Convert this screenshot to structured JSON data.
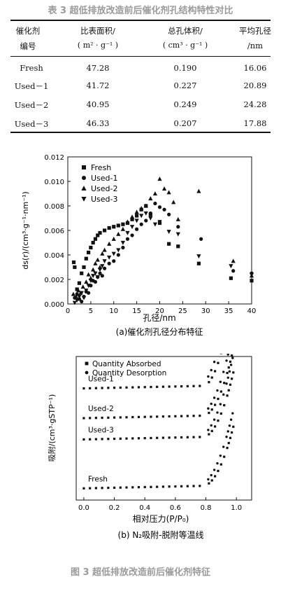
{
  "table": {
    "caption": "表 3 超低排放改造前后催化剂孔结构特性对比",
    "headers": [
      {
        "line1": "催化剂",
        "line2": "编号"
      },
      {
        "line1": "比表面积/",
        "line2": "( m² · g⁻¹ )"
      },
      {
        "line1": "总孔体积/",
        "line2": "( cm³ · g⁻¹ )"
      },
      {
        "line1": "平均孔径",
        "line2": "/nm"
      }
    ],
    "rows": [
      [
        "Fresh",
        "47.28",
        "0.190",
        "16.06"
      ],
      [
        "Used－1",
        "41.72",
        "0.227",
        "20.89"
      ],
      [
        "Used－2",
        "40.95",
        "0.249",
        "24.28"
      ],
      [
        "Used－3",
        "46.33",
        "0.207",
        "17.88"
      ]
    ]
  },
  "chart_data": [
    {
      "type": "scatter",
      "caption": "(a)催化剂孔径分布特征",
      "xlabel": "孔径/nm",
      "ylabel": "ds(r)/(cm³·g⁻¹·nm⁻¹)",
      "xlim": [
        0,
        40
      ],
      "ylim": [
        0,
        0.012
      ],
      "xticks": [
        "0",
        "5",
        "10",
        "15",
        "20",
        "25",
        "30",
        "35",
        "40"
      ],
      "yticks": [
        "0.000",
        "0.002",
        "0.004",
        "0.006",
        "0.008",
        "0.010",
        "0.012"
      ],
      "legend_position": "top-left",
      "series": [
        {
          "name": "Fresh",
          "marker": "square",
          "points": [
            [
              1.3,
              0.0034
            ],
            [
              1.5,
              0.003
            ],
            [
              2,
              0.0012
            ],
            [
              2.5,
              0.0017
            ],
            [
              3,
              0.0025
            ],
            [
              3.5,
              0.003
            ],
            [
              4,
              0.0037
            ],
            [
              4.5,
              0.0042
            ],
            [
              5,
              0.0046
            ],
            [
              5.5,
              0.005
            ],
            [
              6,
              0.0053
            ],
            [
              6.5,
              0.0056
            ],
            [
              7,
              0.0058
            ],
            [
              8,
              0.006
            ],
            [
              9,
              0.0062
            ],
            [
              10,
              0.0063
            ],
            [
              11,
              0.0064
            ],
            [
              12,
              0.0065
            ],
            [
              13,
              0.0066
            ],
            [
              14,
              0.0069
            ],
            [
              15,
              0.0072
            ],
            [
              16,
              0.0077
            ],
            [
              17,
              0.008
            ],
            [
              18,
              0.0073
            ],
            [
              20,
              0.0066
            ],
            [
              22,
              0.0049
            ],
            [
              24,
              0.0047
            ],
            [
              28.5,
              0.0033
            ],
            [
              35.5,
              0.0021
            ],
            [
              40,
              0.0019
            ]
          ]
        },
        {
          "name": "Used-1",
          "marker": "circle",
          "points": [
            [
              1.5,
              0.0005
            ],
            [
              2,
              0.0008
            ],
            [
              2.5,
              0.0004
            ],
            [
              3,
              0.0002
            ],
            [
              3.5,
              0.0006
            ],
            [
              4,
              0.001
            ],
            [
              4.5,
              0.0009
            ],
            [
              5,
              0.0015
            ],
            [
              5.5,
              0.0019
            ],
            [
              6,
              0.0018
            ],
            [
              6.5,
              0.0022
            ],
            [
              7,
              0.0025
            ],
            [
              7.5,
              0.0023
            ],
            [
              8,
              0.0029
            ],
            [
              9,
              0.0033
            ],
            [
              10,
              0.0035
            ],
            [
              11,
              0.004
            ],
            [
              12,
              0.0046
            ],
            [
              13,
              0.0053
            ],
            [
              14,
              0.0056
            ],
            [
              15,
              0.0061
            ],
            [
              16,
              0.0065
            ],
            [
              17,
              0.0068
            ],
            [
              18,
              0.0074
            ],
            [
              19,
              0.0082
            ],
            [
              20,
              0.0079
            ],
            [
              21,
              0.0077
            ],
            [
              22,
              0.0073
            ],
            [
              24,
              0.0063
            ],
            [
              29,
              0.0053
            ],
            [
              36,
              0.0027
            ],
            [
              40,
              0.0025
            ]
          ]
        },
        {
          "name": "Used-2",
          "marker": "triangle-up",
          "points": [
            [
              1.2,
              0.0008
            ],
            [
              1.8,
              0.0006
            ],
            [
              2.3,
              0.0011
            ],
            [
              2.8,
              0.0009
            ],
            [
              3.3,
              0.0014
            ],
            [
              4,
              0.0018
            ],
            [
              4.5,
              0.0024
            ],
            [
              5,
              0.0021
            ],
            [
              5.5,
              0.0028
            ],
            [
              6,
              0.0033
            ],
            [
              6.5,
              0.0036
            ],
            [
              7,
              0.003
            ],
            [
              7.5,
              0.0041
            ],
            [
              8,
              0.0044
            ],
            [
              9,
              0.0049
            ],
            [
              10,
              0.0053
            ],
            [
              11,
              0.0057
            ],
            [
              12,
              0.0061
            ],
            [
              13,
              0.0067
            ],
            [
              14,
              0.0071
            ],
            [
              15,
              0.0075
            ],
            [
              16,
              0.0078
            ],
            [
              17,
              0.008
            ],
            [
              18,
              0.0086
            ],
            [
              19,
              0.009
            ],
            [
              20,
              0.0102
            ],
            [
              21,
              0.0094
            ],
            [
              22,
              0.0091
            ],
            [
              23,
              0.0083
            ],
            [
              24,
              0.0069
            ],
            [
              28.5,
              0.0092
            ],
            [
              36,
              0.0035
            ],
            [
              40,
              0.0023
            ]
          ]
        },
        {
          "name": "Used-3",
          "marker": "triangle-down",
          "points": [
            [
              1.5,
              0.0001
            ],
            [
              2,
              0.0003
            ],
            [
              2.5,
              0.0006
            ],
            [
              3,
              0.0009
            ],
            [
              3.5,
              0.0005
            ],
            [
              4,
              0.0011
            ],
            [
              4.5,
              0.0015
            ],
            [
              5,
              0.0019
            ],
            [
              5.5,
              0.0023
            ],
            [
              6,
              0.0025
            ],
            [
              6.5,
              0.0022
            ],
            [
              7,
              0.0028
            ],
            [
              7.5,
              0.0031
            ],
            [
              8,
              0.0035
            ],
            [
              9,
              0.0038
            ],
            [
              10,
              0.0041
            ],
            [
              11,
              0.0044
            ],
            [
              12,
              0.005
            ],
            [
              13,
              0.0058
            ],
            [
              14,
              0.0063
            ],
            [
              15,
              0.0068
            ],
            [
              16,
              0.0072
            ],
            [
              17,
              0.0074
            ],
            [
              18,
              0.007
            ],
            [
              19,
              0.0065
            ],
            [
              20,
              0.0067
            ],
            [
              22,
              0.0059
            ],
            [
              24,
              0.0057
            ],
            [
              28.5,
              0.0039
            ],
            [
              35.5,
              0.0031
            ],
            [
              40,
              0.0024
            ]
          ]
        }
      ]
    },
    {
      "type": "scatter",
      "caption": "(b) N₂吸附-脱附等温线",
      "xlabel": "相对压力(P/P₀)",
      "ylabel": "吸附/(cm³·gSTP⁻¹)",
      "xlim": [
        -0.05,
        1.1
      ],
      "xticks": [
        "0.0",
        "0.2",
        "0.4",
        "0.6",
        "0.8",
        "1.0"
      ],
      "legend_position": "top-left",
      "legend": [
        "Quantity Absorbed",
        "Quantity Desorption"
      ],
      "curve_labels": [
        "Used-1",
        "Used-2",
        "Used-3",
        "Fresh"
      ],
      "series": [
        {
          "name": "Used-1",
          "baseline": 1.0,
          "rise": 0.85
        },
        {
          "name": "Used-2",
          "baseline": 0.72,
          "rise": 0.62
        },
        {
          "name": "Used-3",
          "baseline": 0.52,
          "rise": 0.6
        },
        {
          "name": "Fresh",
          "baseline": 0.06,
          "rise": 0.55
        }
      ]
    }
  ],
  "figure": {
    "caption": "图 3 超低排放改造前后催化剂特征"
  }
}
